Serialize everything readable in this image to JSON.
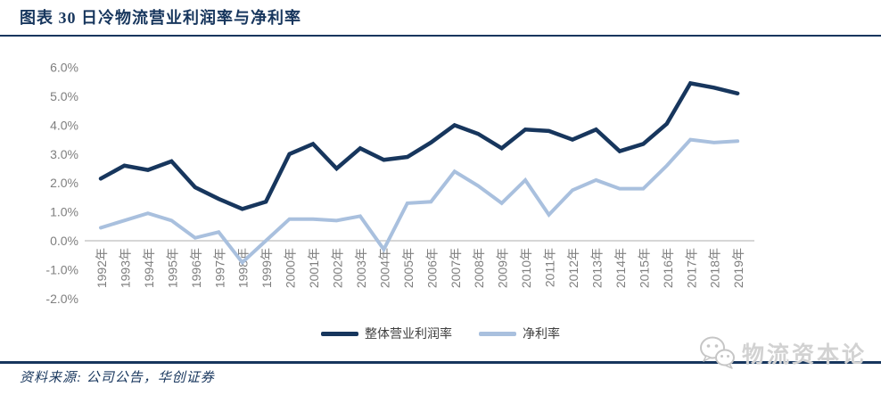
{
  "header": {
    "title": "图表 30  日冷物流营业利润率与净利率"
  },
  "chart_data": {
    "type": "line",
    "title": "日冷物流营业利润率与净利率",
    "categories": [
      "1992年",
      "1993年",
      "1994年",
      "1995年",
      "1996年",
      "1997年",
      "1998年",
      "1999年",
      "2000年",
      "2001年",
      "2002年",
      "2003年",
      "2004年",
      "2005年",
      "2006年",
      "2007年",
      "2008年",
      "2009年",
      "2010年",
      "2011年",
      "2012年",
      "2013年",
      "2014年",
      "2015年",
      "2016年",
      "2017年",
      "2018年",
      "2019年"
    ],
    "series": [
      {
        "name": "整体营业利润率",
        "color": "#17365D",
        "values": [
          2.15,
          2.6,
          2.45,
          2.75,
          1.85,
          1.45,
          1.1,
          1.35,
          3.0,
          3.35,
          2.5,
          3.2,
          2.8,
          2.9,
          3.4,
          4.0,
          3.7,
          3.2,
          3.85,
          3.8,
          3.5,
          3.85,
          3.1,
          3.35,
          4.05,
          5.45,
          5.3,
          5.1
        ]
      },
      {
        "name": "净利率",
        "color": "#A9C0DE",
        "values": [
          0.45,
          0.7,
          0.95,
          0.7,
          0.1,
          0.3,
          -0.75,
          0.0,
          0.75,
          0.75,
          0.7,
          0.85,
          -0.3,
          1.3,
          1.35,
          2.4,
          1.9,
          1.3,
          2.1,
          0.9,
          1.75,
          2.1,
          1.8,
          1.8,
          2.6,
          3.5,
          3.4,
          3.45
        ]
      }
    ],
    "ylim": [
      -2.0,
      6.0
    ],
    "yticks": [
      "6.0%",
      "5.0%",
      "4.0%",
      "3.0%",
      "2.0%",
      "1.0%",
      "0.0%",
      "-1.0%",
      "-2.0%"
    ],
    "ytick_values": [
      6,
      5,
      4,
      3,
      2,
      1,
      0,
      -1,
      -2
    ],
    "gridlines": "zero-line-only",
    "zero_line_color": "#C9C9C9",
    "axis_text_color": "#7F7F7F",
    "legend_position": "bottom-center"
  },
  "footer": {
    "source": "资料来源: 公司公告，华创证券"
  },
  "watermark": {
    "icon": "wechat-bubbles-icon",
    "text": "物流资本论"
  },
  "colors": {
    "accent": "#17365D",
    "rule": "#17365D"
  }
}
